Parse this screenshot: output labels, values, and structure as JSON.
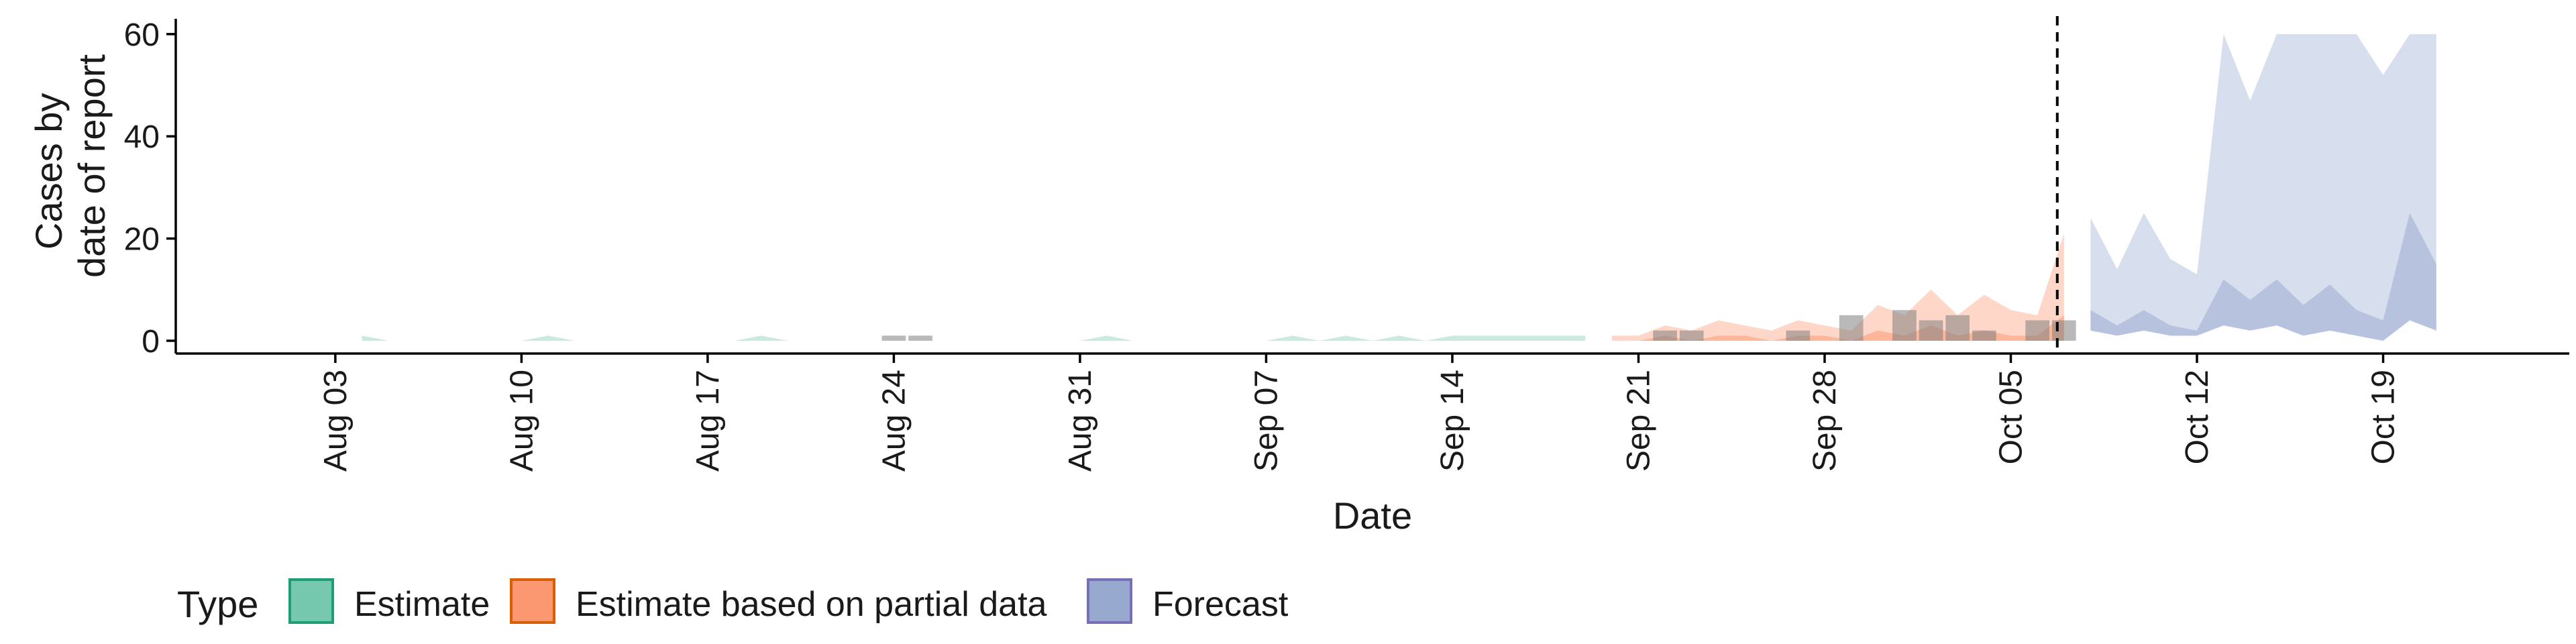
{
  "chart_data": {
    "type": "area",
    "title": "",
    "xlabel": "Date",
    "ylabel_lines": [
      "Cases by",
      "date of report"
    ],
    "ylim": [
      -2.5,
      63
    ],
    "yticks": [
      0,
      20,
      40,
      60
    ],
    "x_range": [
      "2025-07-28",
      "2025-10-26"
    ],
    "x_ticks": [
      {
        "date": "2025-08-03",
        "label": "Aug 03"
      },
      {
        "date": "2025-08-10",
        "label": "Aug 10"
      },
      {
        "date": "2025-08-17",
        "label": "Aug 17"
      },
      {
        "date": "2025-08-24",
        "label": "Aug 24"
      },
      {
        "date": "2025-08-31",
        "label": "Aug 31"
      },
      {
        "date": "2025-09-07",
        "label": "Sep 07"
      },
      {
        "date": "2025-09-14",
        "label": "Sep 14"
      },
      {
        "date": "2025-09-21",
        "label": "Sep 21"
      },
      {
        "date": "2025-09-28",
        "label": "Sep 28"
      },
      {
        "date": "2025-10-05",
        "label": "Oct 05"
      },
      {
        "date": "2025-10-12",
        "label": "Oct 12"
      },
      {
        "date": "2025-10-19",
        "label": "Oct 19"
      }
    ],
    "forecast_start": "2025-10-07",
    "observed_cases": [
      {
        "date": "2025-08-24",
        "value": 1
      },
      {
        "date": "2025-08-25",
        "value": 1
      },
      {
        "date": "2025-09-22",
        "value": 2
      },
      {
        "date": "2025-09-23",
        "value": 2
      },
      {
        "date": "2025-09-27",
        "value": 2
      },
      {
        "date": "2025-09-29",
        "value": 5
      },
      {
        "date": "2025-10-01",
        "value": 6
      },
      {
        "date": "2025-10-02",
        "value": 4
      },
      {
        "date": "2025-10-03",
        "value": 5
      },
      {
        "date": "2025-10-04",
        "value": 2
      },
      {
        "date": "2025-10-06",
        "value": 4
      },
      {
        "date": "2025-10-07",
        "value": 4
      }
    ],
    "legend": {
      "title": "Type",
      "position": "bottom",
      "items": [
        {
          "label": "Estimate",
          "fill": "#66c2a5",
          "stroke": "#1b9e77"
        },
        {
          "label": "Estimate based on partial data",
          "fill": "#fc8d62",
          "stroke": "#d95f02"
        },
        {
          "label": "Forecast",
          "fill": "#8da0cb",
          "stroke": "#7570b3"
        }
      ]
    },
    "series": [
      {
        "name": "Estimate",
        "color": "#66c2a5",
        "x": [
          "2025-08-04",
          "2025-08-05",
          "2025-08-06",
          "2025-08-07",
          "2025-08-08",
          "2025-08-09",
          "2025-08-10",
          "2025-08-11",
          "2025-08-12",
          "2025-08-13",
          "2025-08-14",
          "2025-08-15",
          "2025-08-16",
          "2025-08-17",
          "2025-08-18",
          "2025-08-19",
          "2025-08-20",
          "2025-08-21",
          "2025-08-22",
          "2025-08-23",
          "2025-08-24",
          "2025-08-25",
          "2025-08-26",
          "2025-08-27",
          "2025-08-28",
          "2025-08-29",
          "2025-08-30",
          "2025-08-31",
          "2025-09-01",
          "2025-09-02",
          "2025-09-03",
          "2025-09-04",
          "2025-09-05",
          "2025-09-06",
          "2025-09-07",
          "2025-09-08",
          "2025-09-09",
          "2025-09-10",
          "2025-09-11",
          "2025-09-12",
          "2025-09-13",
          "2025-09-14",
          "2025-09-15",
          "2025-09-16",
          "2025-09-17",
          "2025-09-18",
          "2025-09-19"
        ],
        "upper_90": [
          1,
          0,
          0,
          0,
          0,
          0,
          0,
          1,
          0,
          0,
          0,
          0,
          0,
          0,
          0,
          1,
          0,
          0,
          0,
          0,
          0,
          0,
          0,
          0,
          0,
          0,
          0,
          0,
          1,
          0,
          0,
          0,
          0,
          0,
          0,
          1,
          0,
          1,
          0,
          1,
          0,
          1,
          1,
          1,
          1,
          1,
          1
        ],
        "upper_50": [
          0,
          0,
          0,
          0,
          0,
          0,
          0,
          0,
          0,
          0,
          0,
          0,
          0,
          0,
          0,
          0,
          0,
          0,
          0,
          0,
          0,
          0,
          0,
          0,
          0,
          0,
          0,
          0,
          0,
          0,
          0,
          0,
          0,
          0,
          0,
          0,
          0,
          0,
          0,
          0,
          0,
          0,
          0,
          0,
          0,
          0,
          0
        ],
        "lower": [
          0,
          0,
          0,
          0,
          0,
          0,
          0,
          0,
          0,
          0,
          0,
          0,
          0,
          0,
          0,
          0,
          0,
          0,
          0,
          0,
          0,
          0,
          0,
          0,
          0,
          0,
          0,
          0,
          0,
          0,
          0,
          0,
          0,
          0,
          0,
          0,
          0,
          0,
          0,
          0,
          0,
          0,
          0,
          0,
          0,
          0,
          0
        ]
      },
      {
        "name": "Estimate based on partial data",
        "color": "#fc8d62",
        "x": [
          "2025-09-20",
          "2025-09-21",
          "2025-09-22",
          "2025-09-23",
          "2025-09-24",
          "2025-09-25",
          "2025-09-26",
          "2025-09-27",
          "2025-09-28",
          "2025-09-29",
          "2025-09-30",
          "2025-10-01",
          "2025-10-02",
          "2025-10-03",
          "2025-10-04",
          "2025-10-05",
          "2025-10-06",
          "2025-10-07"
        ],
        "upper_90": [
          1,
          1,
          3,
          2,
          4,
          3,
          2,
          4,
          3,
          2,
          7,
          5,
          10,
          5,
          9,
          6,
          5,
          21
        ],
        "upper_50": [
          0,
          0,
          1,
          0,
          1,
          1,
          0,
          1,
          1,
          0,
          2,
          1,
          3,
          1,
          2,
          1,
          1,
          5
        ],
        "lower": [
          0,
          0,
          0,
          0,
          0,
          0,
          0,
          0,
          0,
          0,
          0,
          0,
          0,
          0,
          0,
          0,
          0,
          0
        ]
      },
      {
        "name": "Forecast",
        "color": "#8da0cb",
        "x": [
          "2025-10-08",
          "2025-10-09",
          "2025-10-10",
          "2025-10-11",
          "2025-10-12",
          "2025-10-13",
          "2025-10-14",
          "2025-10-15",
          "2025-10-16",
          "2025-10-17",
          "2025-10-18",
          "2025-10-19",
          "2025-10-20",
          "2025-10-21"
        ],
        "upper_90": [
          24,
          14,
          25,
          16,
          13,
          60,
          47,
          60,
          60,
          60,
          60,
          52,
          60,
          60
        ],
        "upper_50": [
          6,
          3,
          6,
          3,
          2,
          12,
          8,
          12,
          7,
          11,
          6,
          4,
          25,
          15
        ],
        "lower": [
          2,
          1,
          2,
          1,
          1,
          3,
          2,
          3,
          1,
          2,
          1,
          0,
          4,
          2
        ]
      }
    ]
  }
}
